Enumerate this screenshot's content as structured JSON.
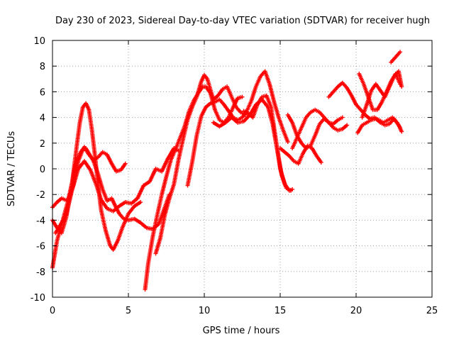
{
  "chart_data": {
    "type": "scatter",
    "title": "Day 230 of 2023, Sidereal Day-to-day VTEC variation (SDTVAR) for receiver hugh",
    "xlabel": "GPS time / hours",
    "ylabel": "SDTVAR / TECUs",
    "xlim": [
      0,
      25
    ],
    "ylim": [
      -10,
      10
    ],
    "xticks": [
      "0",
      "5",
      "10",
      "15",
      "20",
      "25"
    ],
    "yticks": [
      "10",
      "8",
      "6",
      "4",
      "2",
      "0",
      "-2",
      "-4",
      "-6",
      "-8",
      "-10"
    ],
    "grid": true,
    "marker": "+",
    "series_color": "#ff0000",
    "series": [
      {
        "x": [
          0.0,
          0.3,
          0.6,
          1.0,
          1.4,
          1.7,
          2.0,
          2.2,
          2.4,
          2.7,
          3.0,
          3.3,
          3.6,
          3.9,
          4.1,
          4.4,
          4.7,
          5.0,
          5.4,
          5.8,
          6.2,
          6.6,
          7.0,
          7.4,
          7.7
        ],
        "y": [
          -3.0,
          -2.6,
          -2.3,
          -2.5,
          -1.2,
          0.6,
          1.5,
          1.6,
          1.2,
          0.6,
          -0.4,
          -1.6,
          -2.5,
          -2.3,
          -2.8,
          -3.5,
          -3.9,
          -4.0,
          -3.9,
          -4.2,
          -4.6,
          -4.7,
          -4.3,
          -3.0,
          -2.0
        ]
      },
      {
        "x": [
          0.0,
          0.3,
          0.6,
          0.9,
          1.2,
          1.5,
          1.8,
          2.1,
          2.4,
          2.7,
          3.0,
          3.3,
          3.6,
          3.9,
          4.2,
          4.5,
          4.8
        ],
        "y": [
          -4.0,
          -4.6,
          -5.0,
          -3.8,
          -1.8,
          0.3,
          1.2,
          1.7,
          1.1,
          0.7,
          0.9,
          1.3,
          1.1,
          0.4,
          -0.2,
          -0.1,
          0.4
        ]
      },
      {
        "x": [
          0.0,
          0.3,
          0.7,
          1.0,
          1.3,
          1.6,
          1.8,
          2.0,
          2.2,
          2.4,
          2.6,
          2.8,
          3.0,
          3.2,
          3.5,
          3.8,
          4.0,
          4.3,
          4.6,
          5.0,
          5.4,
          5.8
        ],
        "y": [
          -7.7,
          -5.6,
          -3.9,
          -2.6,
          -1.0,
          1.8,
          3.6,
          4.8,
          5.1,
          4.6,
          3.0,
          1.0,
          -1.2,
          -3.2,
          -4.8,
          -6.0,
          -6.3,
          -5.6,
          -4.6,
          -3.5,
          -2.9,
          -2.6
        ]
      },
      {
        "x": [
          0.2,
          0.5,
          0.9,
          1.3,
          1.7,
          2.1,
          2.5,
          2.9,
          3.2,
          3.6,
          4.0,
          4.4,
          4.8,
          5.2,
          5.6,
          6.0,
          6.4,
          6.8,
          7.2,
          7.6,
          8.0,
          8.3
        ],
        "y": [
          -5.0,
          -4.4,
          -3.6,
          -1.6,
          0.0,
          0.6,
          -0.1,
          -1.3,
          -2.4,
          -3.1,
          -3.3,
          -2.9,
          -2.6,
          -2.7,
          -2.3,
          -1.3,
          -1.0,
          0.0,
          -0.2,
          0.8,
          1.6,
          1.4
        ]
      },
      {
        "x": [
          6.1,
          6.3,
          6.6,
          6.9,
          7.2,
          7.5,
          7.8,
          8.1,
          8.4,
          8.7,
          9.0,
          9.3,
          9.6,
          9.9,
          10.1,
          10.4,
          10.7,
          11.0,
          11.3,
          11.6,
          11.9,
          12.2,
          12.5
        ],
        "y": [
          -9.4,
          -7.4,
          -5.3,
          -3.6,
          -2.0,
          -0.6,
          0.7,
          1.5,
          2.4,
          3.3,
          4.5,
          5.3,
          5.9,
          6.4,
          6.4,
          5.9,
          4.6,
          3.8,
          3.6,
          4.0,
          4.8,
          5.5,
          5.6
        ]
      },
      {
        "x": [
          6.8,
          7.1,
          7.4,
          7.7,
          8.0,
          8.3,
          8.6,
          8.9,
          9.2,
          9.5,
          9.8,
          10.0,
          10.2,
          10.4,
          10.6,
          10.9,
          11.2,
          11.5,
          11.8,
          12.1,
          12.4,
          12.7
        ],
        "y": [
          -6.6,
          -5.4,
          -3.6,
          -2.3,
          -1.2,
          0.7,
          2.3,
          3.8,
          4.8,
          5.6,
          6.8,
          7.3,
          7.0,
          6.2,
          5.4,
          5.7,
          6.2,
          6.4,
          5.6,
          4.8,
          4.4,
          4.2
        ]
      },
      {
        "x": [
          8.9,
          9.2,
          9.5,
          9.8,
          10.1,
          10.4,
          10.7,
          11.0,
          11.3,
          11.6,
          11.9,
          12.2,
          12.5,
          12.8,
          13.1,
          13.4,
          13.7,
          14.0,
          14.3,
          14.6,
          14.9,
          15.2,
          15.5
        ],
        "y": [
          -1.3,
          0.5,
          2.6,
          4.1,
          4.8,
          5.1,
          5.2,
          5.4,
          5.0,
          4.5,
          4.0,
          3.8,
          4.0,
          4.5,
          5.3,
          6.4,
          7.2,
          7.6,
          6.6,
          5.2,
          4.0,
          3.0,
          2.1
        ]
      },
      {
        "x": [
          12.6,
          12.9,
          13.2,
          13.5,
          13.8,
          14.1,
          14.4,
          14.7,
          15.0,
          15.3,
          15.6,
          15.8
        ],
        "y": [
          4.5,
          4.3,
          4.0,
          5.0,
          5.6,
          5.7,
          4.8,
          2.4,
          0.0,
          -1.2,
          -1.7,
          -1.6
        ]
      },
      {
        "x": [
          10.6,
          11.0,
          11.4,
          11.8,
          12.2,
          12.6,
          13.0,
          13.4,
          13.8,
          14.2,
          14.5,
          14.8,
          15.1,
          15.4,
          15.7
        ],
        "y": [
          3.6,
          3.3,
          3.6,
          4.0,
          3.6,
          3.7,
          4.2,
          5.0,
          5.4,
          4.8,
          3.5,
          1.5,
          -0.5,
          -1.5,
          -1.7
        ]
      },
      {
        "x": [
          15.5,
          15.8,
          16.1,
          16.4,
          16.7,
          17.0,
          17.3,
          17.6,
          17.9,
          18.2,
          18.5,
          18.8,
          19.1,
          19.4
        ],
        "y": [
          4.2,
          3.6,
          2.6,
          2.0,
          1.6,
          1.8,
          2.6,
          3.5,
          3.9,
          3.6,
          3.2,
          3.0,
          3.1,
          3.4
        ]
      },
      {
        "x": [
          15.0,
          15.3,
          15.6,
          15.9,
          16.2,
          16.5,
          16.8,
          17.1,
          17.4,
          17.7
        ],
        "y": [
          1.6,
          1.3,
          1.0,
          0.6,
          0.4,
          1.2,
          1.8,
          1.6,
          1.0,
          0.5
        ]
      },
      {
        "x": [
          15.8,
          16.1,
          16.4,
          16.7,
          17.0,
          17.3,
          17.6,
          17.9,
          18.2,
          18.5,
          18.8,
          19.1
        ],
        "y": [
          1.6,
          2.4,
          3.2,
          4.0,
          4.4,
          4.6,
          4.4,
          4.0,
          3.6,
          3.5,
          3.8,
          4.0
        ]
      },
      {
        "x": [
          18.2,
          18.5,
          18.8,
          19.1,
          19.4,
          19.7,
          20.0,
          20.3,
          20.6,
          20.9,
          21.2,
          21.5,
          21.8,
          22.1,
          22.4,
          22.7,
          22.9
        ],
        "y": [
          5.6,
          6.0,
          6.4,
          6.7,
          6.3,
          5.7,
          5.0,
          4.6,
          4.2,
          3.9,
          4.0,
          3.8,
          3.6,
          3.8,
          4.0,
          3.6,
          3.2
        ]
      },
      {
        "x": [
          20.1,
          20.4,
          20.7,
          21.0,
          21.3,
          21.6,
          21.9,
          22.2,
          22.5,
          22.8,
          23.0
        ],
        "y": [
          2.8,
          3.4,
          3.6,
          3.8,
          3.9,
          3.6,
          3.4,
          3.5,
          3.9,
          3.4,
          2.9
        ]
      },
      {
        "x": [
          20.2,
          20.5,
          20.8,
          21.1,
          21.4,
          21.7,
          22.0,
          22.3,
          22.6,
          22.9
        ],
        "y": [
          7.4,
          6.6,
          5.6,
          4.6,
          4.6,
          5.2,
          6.0,
          6.8,
          7.4,
          6.6
        ]
      },
      {
        "x": [
          20.4,
          20.7,
          21.0,
          21.3,
          21.6,
          21.9,
          22.2,
          22.5,
          22.8,
          23.0
        ],
        "y": [
          4.0,
          5.0,
          6.1,
          6.6,
          6.1,
          5.6,
          6.4,
          7.2,
          7.6,
          6.4
        ]
      },
      {
        "x": [
          22.3,
          22.6,
          22.9
        ],
        "y": [
          8.3,
          8.7,
          9.1
        ]
      }
    ]
  }
}
